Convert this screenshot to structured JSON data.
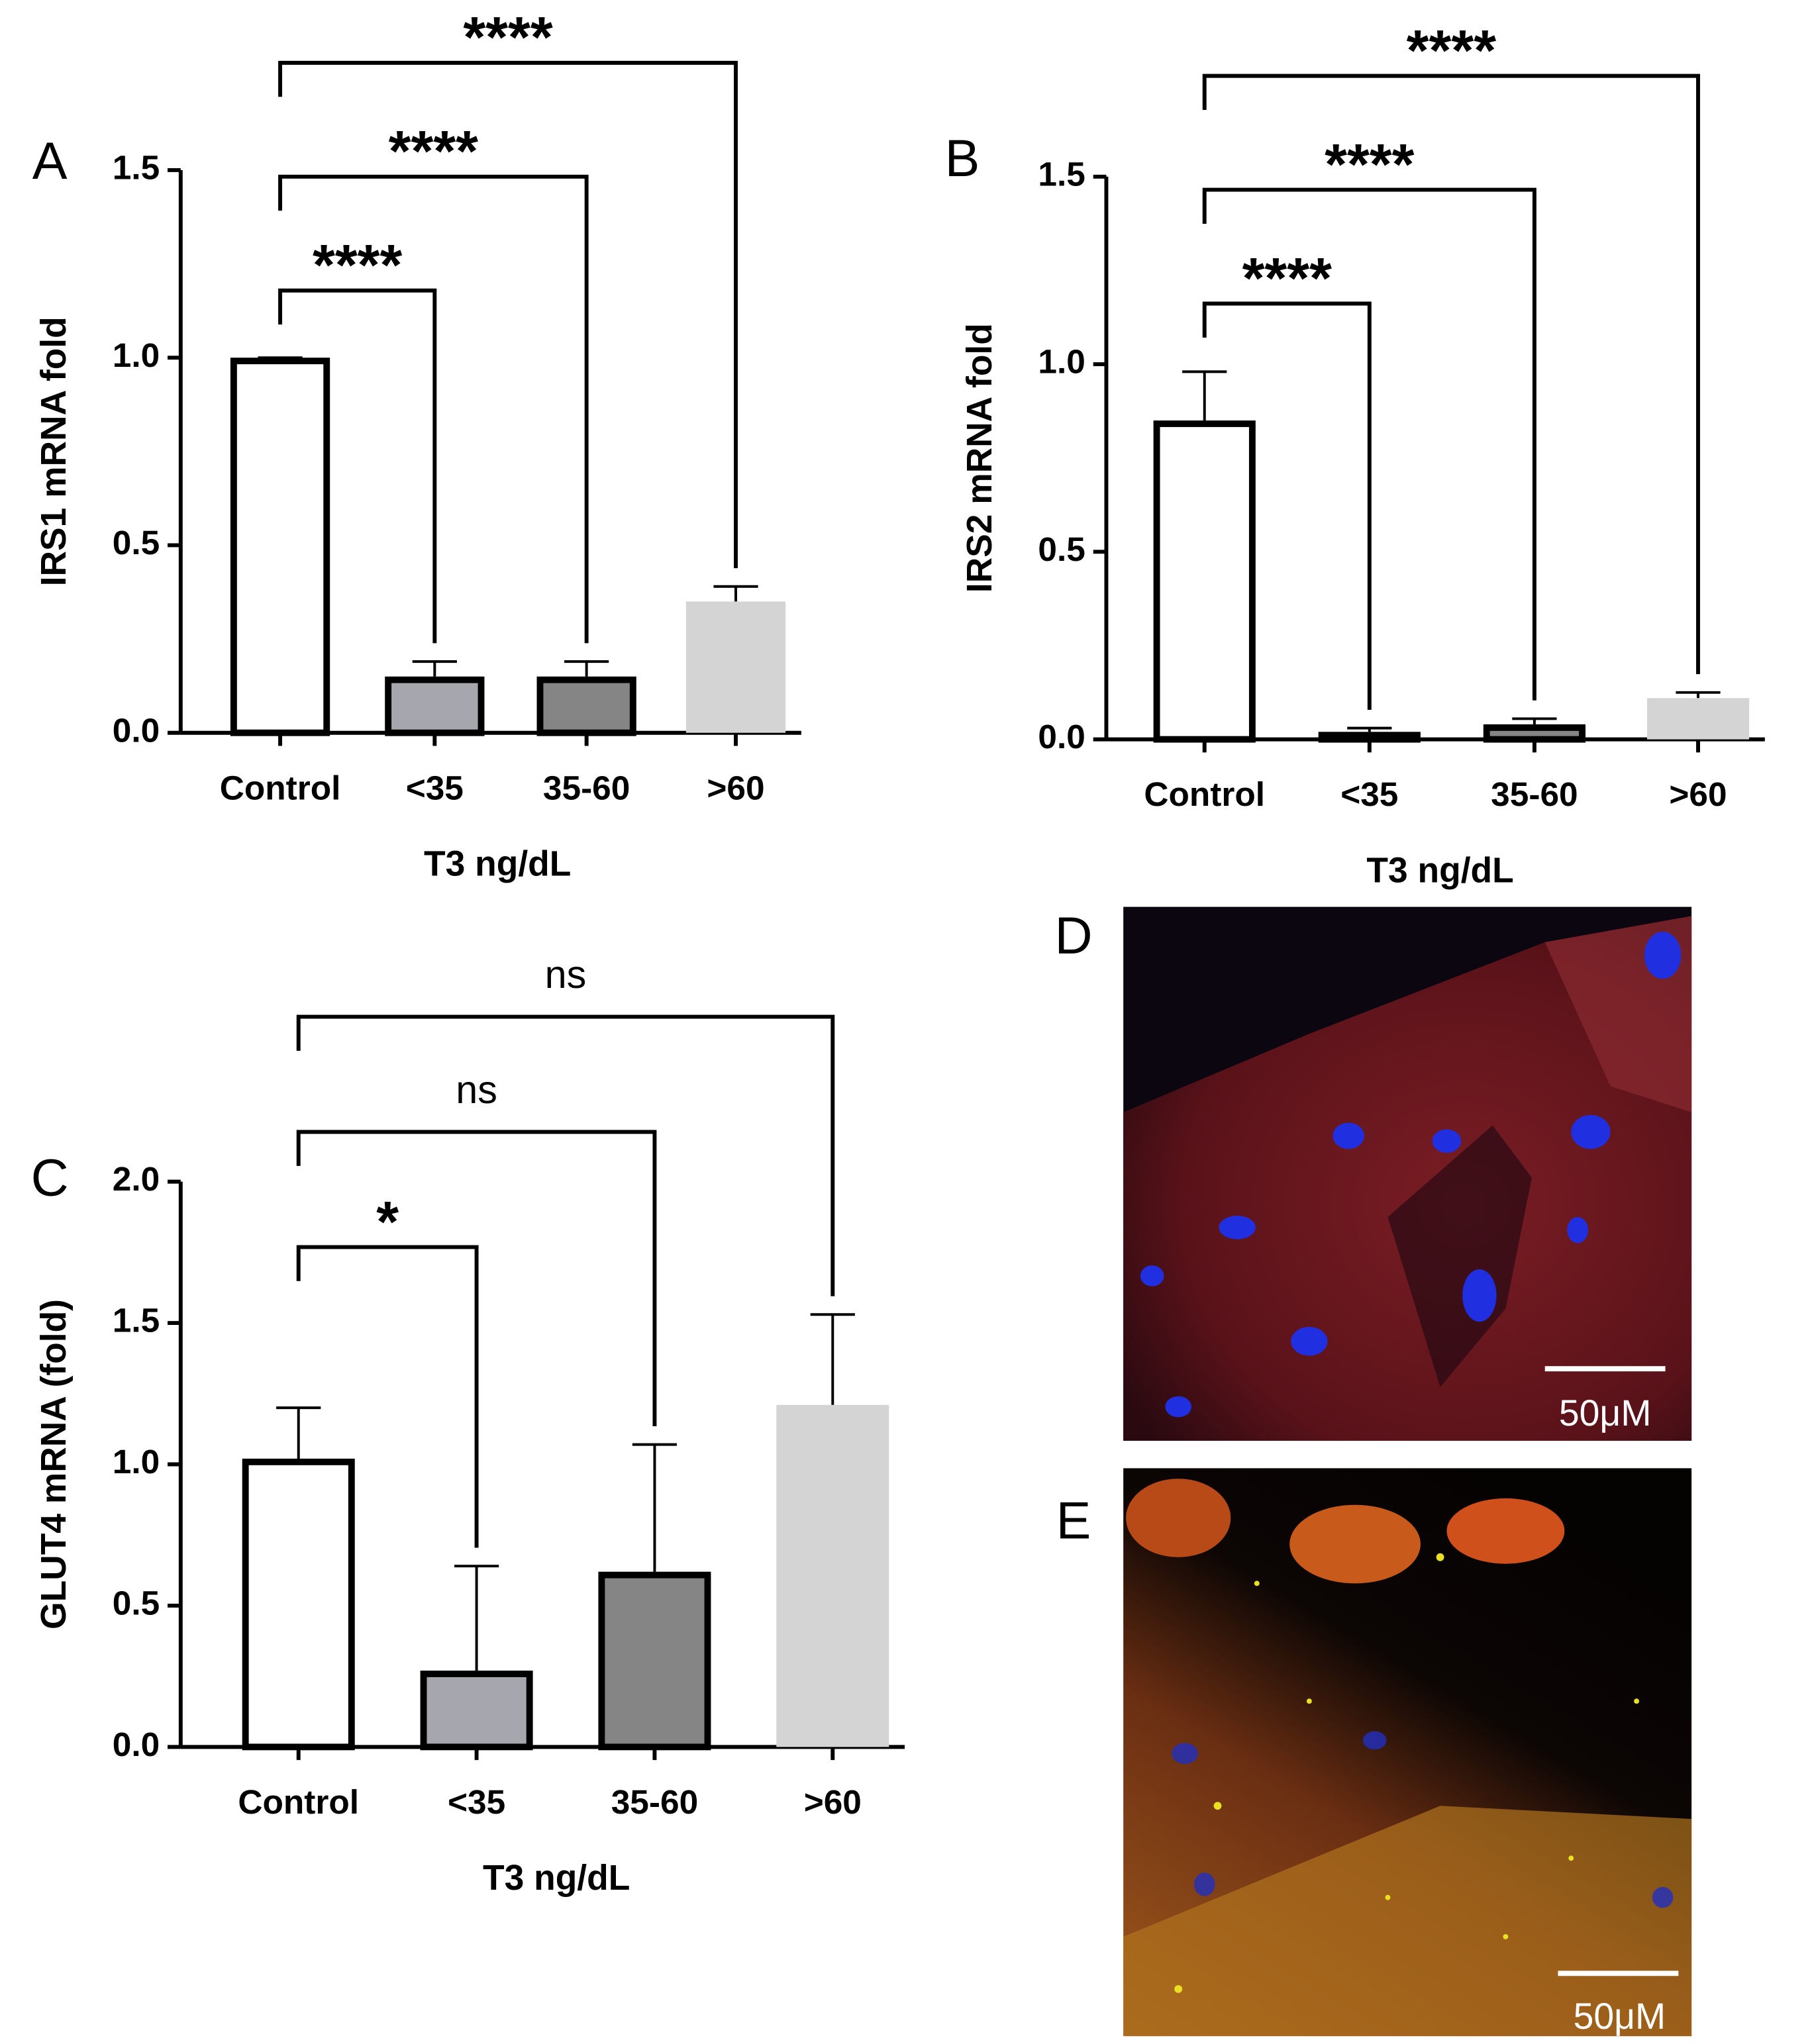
{
  "chart_data": [
    {
      "type": "bar",
      "panel": "A",
      "ylabel": "IRS1 mRNA fold",
      "xlabel": "T3 ng/dL",
      "categories": [
        "Control",
        "<35",
        "35-60",
        ">60"
      ],
      "values": [
        1.0,
        0.15,
        0.15,
        0.35
      ],
      "errors": [
        0,
        0.04,
        0.04,
        0.04
      ],
      "colors": [
        "#ffffff",
        "#a6a6ae",
        "#858585",
        "#d4d4d4"
      ],
      "edgecolors": [
        "#000000",
        "#000000",
        "#000000",
        "none"
      ],
      "ylim": [
        0,
        1.5
      ],
      "yticks": [
        {
          "value": 0,
          "label": "0.0"
        },
        {
          "value": 0.5,
          "label": "0.5"
        },
        {
          "value": 1,
          "label": "1.0"
        },
        {
          "value": 1.5,
          "label": "1.5"
        }
      ],
      "comparisons": [
        {
          "from": 0,
          "to": 1,
          "label": "****"
        },
        {
          "from": 0,
          "to": 2,
          "label": "****"
        },
        {
          "from": 0,
          "to": 3,
          "label": "****"
        }
      ]
    },
    {
      "type": "bar",
      "panel": "B",
      "ylabel": "IRS2 mRNA fold",
      "xlabel": "T3 ng/dL",
      "categories": [
        "Control",
        "<35",
        "35-60",
        ">60"
      ],
      "values": [
        0.85,
        0.02,
        0.04,
        0.11
      ],
      "errors": [
        0.13,
        0.01,
        0.015,
        0.015
      ],
      "colors": [
        "#ffffff",
        "#a6a6ae",
        "#858585",
        "#d4d4d4"
      ],
      "edgecolors": [
        "#000000",
        "#000000",
        "#000000",
        "none"
      ],
      "ylim": [
        0,
        1.5
      ],
      "yticks": [
        {
          "value": 0,
          "label": "0.0"
        },
        {
          "value": 0.5,
          "label": "0.5"
        },
        {
          "value": 1,
          "label": "1.0"
        },
        {
          "value": 1.5,
          "label": "1.5"
        }
      ],
      "comparisons": [
        {
          "from": 0,
          "to": 1,
          "label": "****"
        },
        {
          "from": 0,
          "to": 2,
          "label": "****"
        },
        {
          "from": 0,
          "to": 3,
          "label": "****"
        }
      ]
    },
    {
      "type": "bar",
      "panel": "C",
      "ylabel": "GLUT4 mRNA (fold)",
      "xlabel": "T3 ng/dL",
      "categories": [
        "Control",
        "<35",
        "35-60",
        ">60"
      ],
      "values": [
        1.02,
        0.27,
        0.62,
        1.21
      ],
      "errors": [
        0.18,
        0.37,
        0.45,
        0.32
      ],
      "colors": [
        "#ffffff",
        "#a6a6ae",
        "#858585",
        "#d4d4d4"
      ],
      "edgecolors": [
        "#000000",
        "#000000",
        "#000000",
        "none"
      ],
      "ylim": [
        0,
        2.0
      ],
      "yticks": [
        {
          "value": 0,
          "label": "0.0"
        },
        {
          "value": 0.5,
          "label": "0.5"
        },
        {
          "value": 1,
          "label": "1.0"
        },
        {
          "value": 1.5,
          "label": "1.5"
        },
        {
          "value": 2,
          "label": "2.0"
        }
      ],
      "comparisons": [
        {
          "from": 0,
          "to": 1,
          "label": "*"
        },
        {
          "from": 0,
          "to": 2,
          "label": "ns"
        },
        {
          "from": 0,
          "to": 3,
          "label": "ns"
        }
      ]
    }
  ],
  "images": [
    {
      "panel": "D",
      "scale_bar": "50μM"
    },
    {
      "panel": "E",
      "scale_bar": "50μM"
    }
  ]
}
